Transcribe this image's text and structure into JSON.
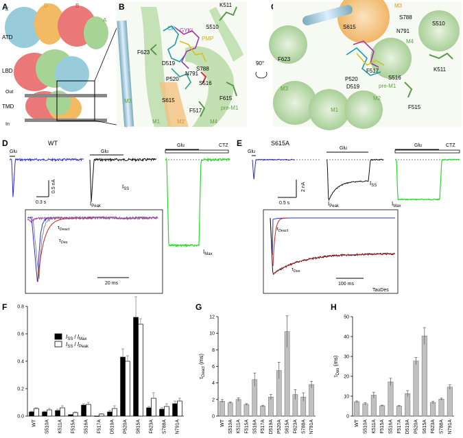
{
  "panel_labels": {
    "a": "A",
    "b": "B",
    "c": "C",
    "d": "D",
    "e": "E",
    "f": "F",
    "g": "G",
    "h": "H"
  },
  "panel_a": {
    "atd": "ATD",
    "lbd": "LBD",
    "tmd": "TMD",
    "out": "Out",
    "in": "In",
    "subunits": {
      "a": "A",
      "b": "B",
      "c": "C",
      "d": "D"
    }
  },
  "panel_b": {
    "labels": [
      "K511",
      "S510",
      "CP",
      "GYKI",
      "PMP",
      "F623",
      "D519",
      "S788",
      "N791",
      "S516",
      "P520",
      "S615",
      "F615",
      "F517",
      "pre-M1",
      "M3",
      "M4",
      "M1",
      "M2"
    ]
  },
  "panel_c": {
    "labels": [
      "M3",
      "S788",
      "S615",
      "S510",
      "N791",
      "M4",
      "F623",
      "P520",
      "F517",
      "S516",
      "K511",
      "D519",
      "pre-M1",
      "M3",
      "M1",
      "M2",
      "F515"
    ],
    "rotation": "90°"
  },
  "panel_d": {
    "title": "WT",
    "glu": "Glu",
    "ctz": "CTZ",
    "iss": "I",
    "iss_sub": "SS",
    "ipeak": "I",
    "ipeak_sub": "Peak",
    "imax": "I",
    "imax_sub": "Max",
    "scale_y": "0.5 nA",
    "scale_x": "0.3 s",
    "inset_tdeact": "τ",
    "inset_tdeact_sub": "Deact",
    "inset_tdes": "τ",
    "inset_tdes_sub": "Des",
    "inset_scale": "20 ms"
  },
  "panel_e": {
    "title": "S615A",
    "glu": "Glu",
    "ctz": "CTZ",
    "iss": "I",
    "iss_sub": "SS",
    "ipeak": "I",
    "ipeak_sub": "Peak",
    "imax": "I",
    "imax_sub": "Max",
    "scale_y": "2 nA",
    "scale_x": "0.5 s",
    "inset_tdeact": "τ",
    "inset_tdeact_sub": "Deact",
    "inset_tdes": "τ",
    "inset_tdes_sub": "Des",
    "inset_scale": "100 ms",
    "inset_note": "TauDes"
  },
  "colors": {
    "blue": "#2a2ad0",
    "green": "#22dd22",
    "black": "#111111",
    "red": "#d02020",
    "bar_gray": "#c0c0c0"
  },
  "chart_data": [
    {
      "panel": "F",
      "type": "bar",
      "categories": [
        "WT",
        "S510A",
        "K511A",
        "F515A",
        "S516A",
        "F517A",
        "D519A",
        "P520A",
        "S615A",
        "F623A",
        "S788A",
        "N791A"
      ],
      "series": [
        {
          "name": "I_SS / I_Max",
          "values": [
            0.03,
            0.03,
            0.04,
            0.01,
            0.08,
            0.0,
            0.03,
            0.43,
            0.72,
            0.06,
            0.05,
            0.09
          ],
          "errors": [
            0.005,
            0.005,
            0.01,
            0.002,
            0.01,
            0.002,
            0.01,
            0.06,
            0.15,
            0.01,
            0.01,
            0.02
          ]
        },
        {
          "name": "I_SS / I_Peak",
          "values": [
            0.055,
            0.045,
            0.06,
            0.025,
            0.085,
            0.015,
            0.055,
            0.4,
            0.67,
            0.13,
            0.07,
            0.11
          ],
          "errors": [
            0.005,
            0.01,
            0.015,
            0.005,
            0.015,
            0.003,
            0.02,
            0.04,
            0.04,
            0.04,
            0.02,
            0.02
          ]
        }
      ],
      "ylim": [
        0,
        0.8
      ],
      "yticks": [
        0.0,
        0.2,
        0.4,
        0.6,
        0.8
      ],
      "legend": "top-left"
    },
    {
      "panel": "G",
      "type": "bar",
      "categories": [
        "WT",
        "S510A",
        "K511A",
        "F515A",
        "S516A",
        "F517A",
        "D519A",
        "P520A",
        "S615A",
        "F623A",
        "S788A",
        "N791A"
      ],
      "values": [
        1.8,
        1.6,
        2.0,
        1.4,
        4.4,
        1.2,
        2.3,
        5.5,
        10.2,
        2.6,
        2.3,
        3.8
      ],
      "errors": [
        0.2,
        0.1,
        0.2,
        0.1,
        0.8,
        0.1,
        0.3,
        1.0,
        1.9,
        0.6,
        0.5,
        0.4
      ],
      "ylabel": "τ",
      "ylabel_sub": "Deact",
      "ylabel_unit": " (ms)",
      "ylim": [
        0,
        12
      ],
      "yticks": [
        0,
        2,
        4,
        6,
        8,
        10,
        12
      ]
    },
    {
      "panel": "H",
      "type": "bar",
      "categories": [
        "WT",
        "S510A",
        "K511A",
        "F515A",
        "S516A",
        "F517A",
        "D519A",
        "P520A",
        "S615A",
        "F623A",
        "S788A",
        "N791A"
      ],
      "values": [
        7.2,
        6.2,
        10.5,
        5.2,
        17.2,
        5.0,
        11.3,
        27.7,
        40.3,
        6.8,
        8.5,
        14.6
      ],
      "errors": [
        0.4,
        0.5,
        1.5,
        0.3,
        1.8,
        0.3,
        1.5,
        1.8,
        4.2,
        0.6,
        0.5,
        1.2
      ],
      "ylabel": "τ",
      "ylabel_sub": "Des",
      "ylabel_unit": " (ms)",
      "ylim": [
        0,
        50
      ],
      "yticks": [
        0,
        10,
        20,
        30,
        40,
        50
      ]
    }
  ]
}
